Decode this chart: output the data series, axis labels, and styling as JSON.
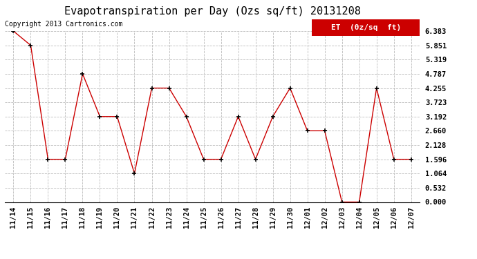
{
  "title": "Evapotranspiration per Day (Ozs sq/ft) 20131208",
  "copyright_text": "Copyright 2013 Cartronics.com",
  "legend_label": "ET  (0z/sq  ft)",
  "x_labels": [
    "11/14",
    "11/15",
    "11/16",
    "11/17",
    "11/18",
    "11/19",
    "11/20",
    "11/21",
    "11/22",
    "11/23",
    "11/24",
    "11/25",
    "11/26",
    "11/27",
    "11/28",
    "11/29",
    "11/30",
    "12/01",
    "12/02",
    "12/03",
    "12/04",
    "12/05",
    "12/06",
    "12/07"
  ],
  "y_values": [
    6.383,
    5.851,
    1.596,
    1.596,
    4.787,
    3.192,
    3.192,
    1.064,
    4.255,
    4.255,
    3.192,
    1.596,
    1.596,
    3.192,
    1.596,
    3.192,
    4.255,
    2.66,
    2.66,
    0.0,
    0.0,
    4.255,
    1.596,
    1.596
  ],
  "y_ticks": [
    0.0,
    0.532,
    1.064,
    1.596,
    2.128,
    2.66,
    3.192,
    3.723,
    4.255,
    4.787,
    5.319,
    5.851,
    6.383
  ],
  "y_min": 0.0,
  "y_max": 6.383,
  "line_color": "#cc0000",
  "marker_color": "#000000",
  "grid_color": "#bbbbbb",
  "background_color": "#ffffff",
  "legend_bg": "#cc0000",
  "legend_text_color": "#ffffff",
  "title_fontsize": 11,
  "copyright_fontsize": 7,
  "tick_fontsize": 7.5,
  "legend_fontsize": 8
}
